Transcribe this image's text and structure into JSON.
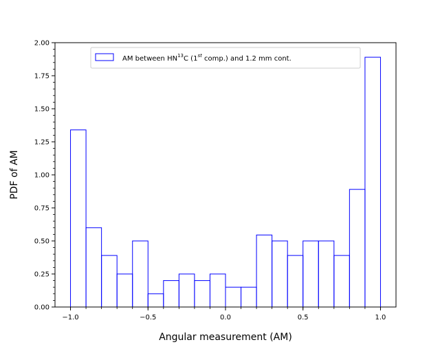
{
  "chart_data": {
    "type": "histogram",
    "series": [
      {
        "name": "AM between HN13C (1st comp.) and 1.2 mm cont.",
        "color": "#0000ff",
        "bin_edges": [
          -1.0,
          -0.9,
          -0.8,
          -0.7,
          -0.6,
          -0.5,
          -0.4,
          -0.3,
          -0.2,
          -0.1,
          0.0,
          0.1,
          0.2,
          0.3,
          0.4,
          0.5,
          0.6,
          0.7,
          0.8,
          0.9,
          1.0
        ],
        "values": [
          1.34,
          0.6,
          0.39,
          0.25,
          0.5,
          0.1,
          0.2,
          0.25,
          0.2,
          0.25,
          0.15,
          0.15,
          0.545,
          0.5,
          0.39,
          0.5,
          0.5,
          0.39,
          0.89,
          1.89
        ]
      }
    ],
    "xlabel": "Angular measurement (AM)",
    "ylabel": "PDF of AM",
    "xlim": [
      -1.1,
      1.1
    ],
    "ylim": [
      0.0,
      2.0
    ],
    "x_ticks": [
      -1.0,
      -0.5,
      0.0,
      0.5,
      1.0
    ],
    "x_tick_labels": [
      "−1.0",
      "−0.5",
      "0.0",
      "0.5",
      "1.0"
    ],
    "y_ticks": [
      0.0,
      0.25,
      0.5,
      0.75,
      1.0,
      1.25,
      1.5,
      1.75,
      2.0
    ],
    "y_tick_labels": [
      "0.00",
      "0.25",
      "0.50",
      "0.75",
      "1.00",
      "1.25",
      "1.50",
      "1.75",
      "2.00"
    ],
    "y_minor_step": 0.05,
    "x_minor_step": 0.1,
    "grid": false,
    "legend": {
      "placement": "upper-center",
      "parts": {
        "pre": "AM between HN",
        "sup1": "13",
        "mid": "C (1",
        "sup2": "st",
        "post": " comp.) and 1.2 mm cont."
      }
    }
  }
}
